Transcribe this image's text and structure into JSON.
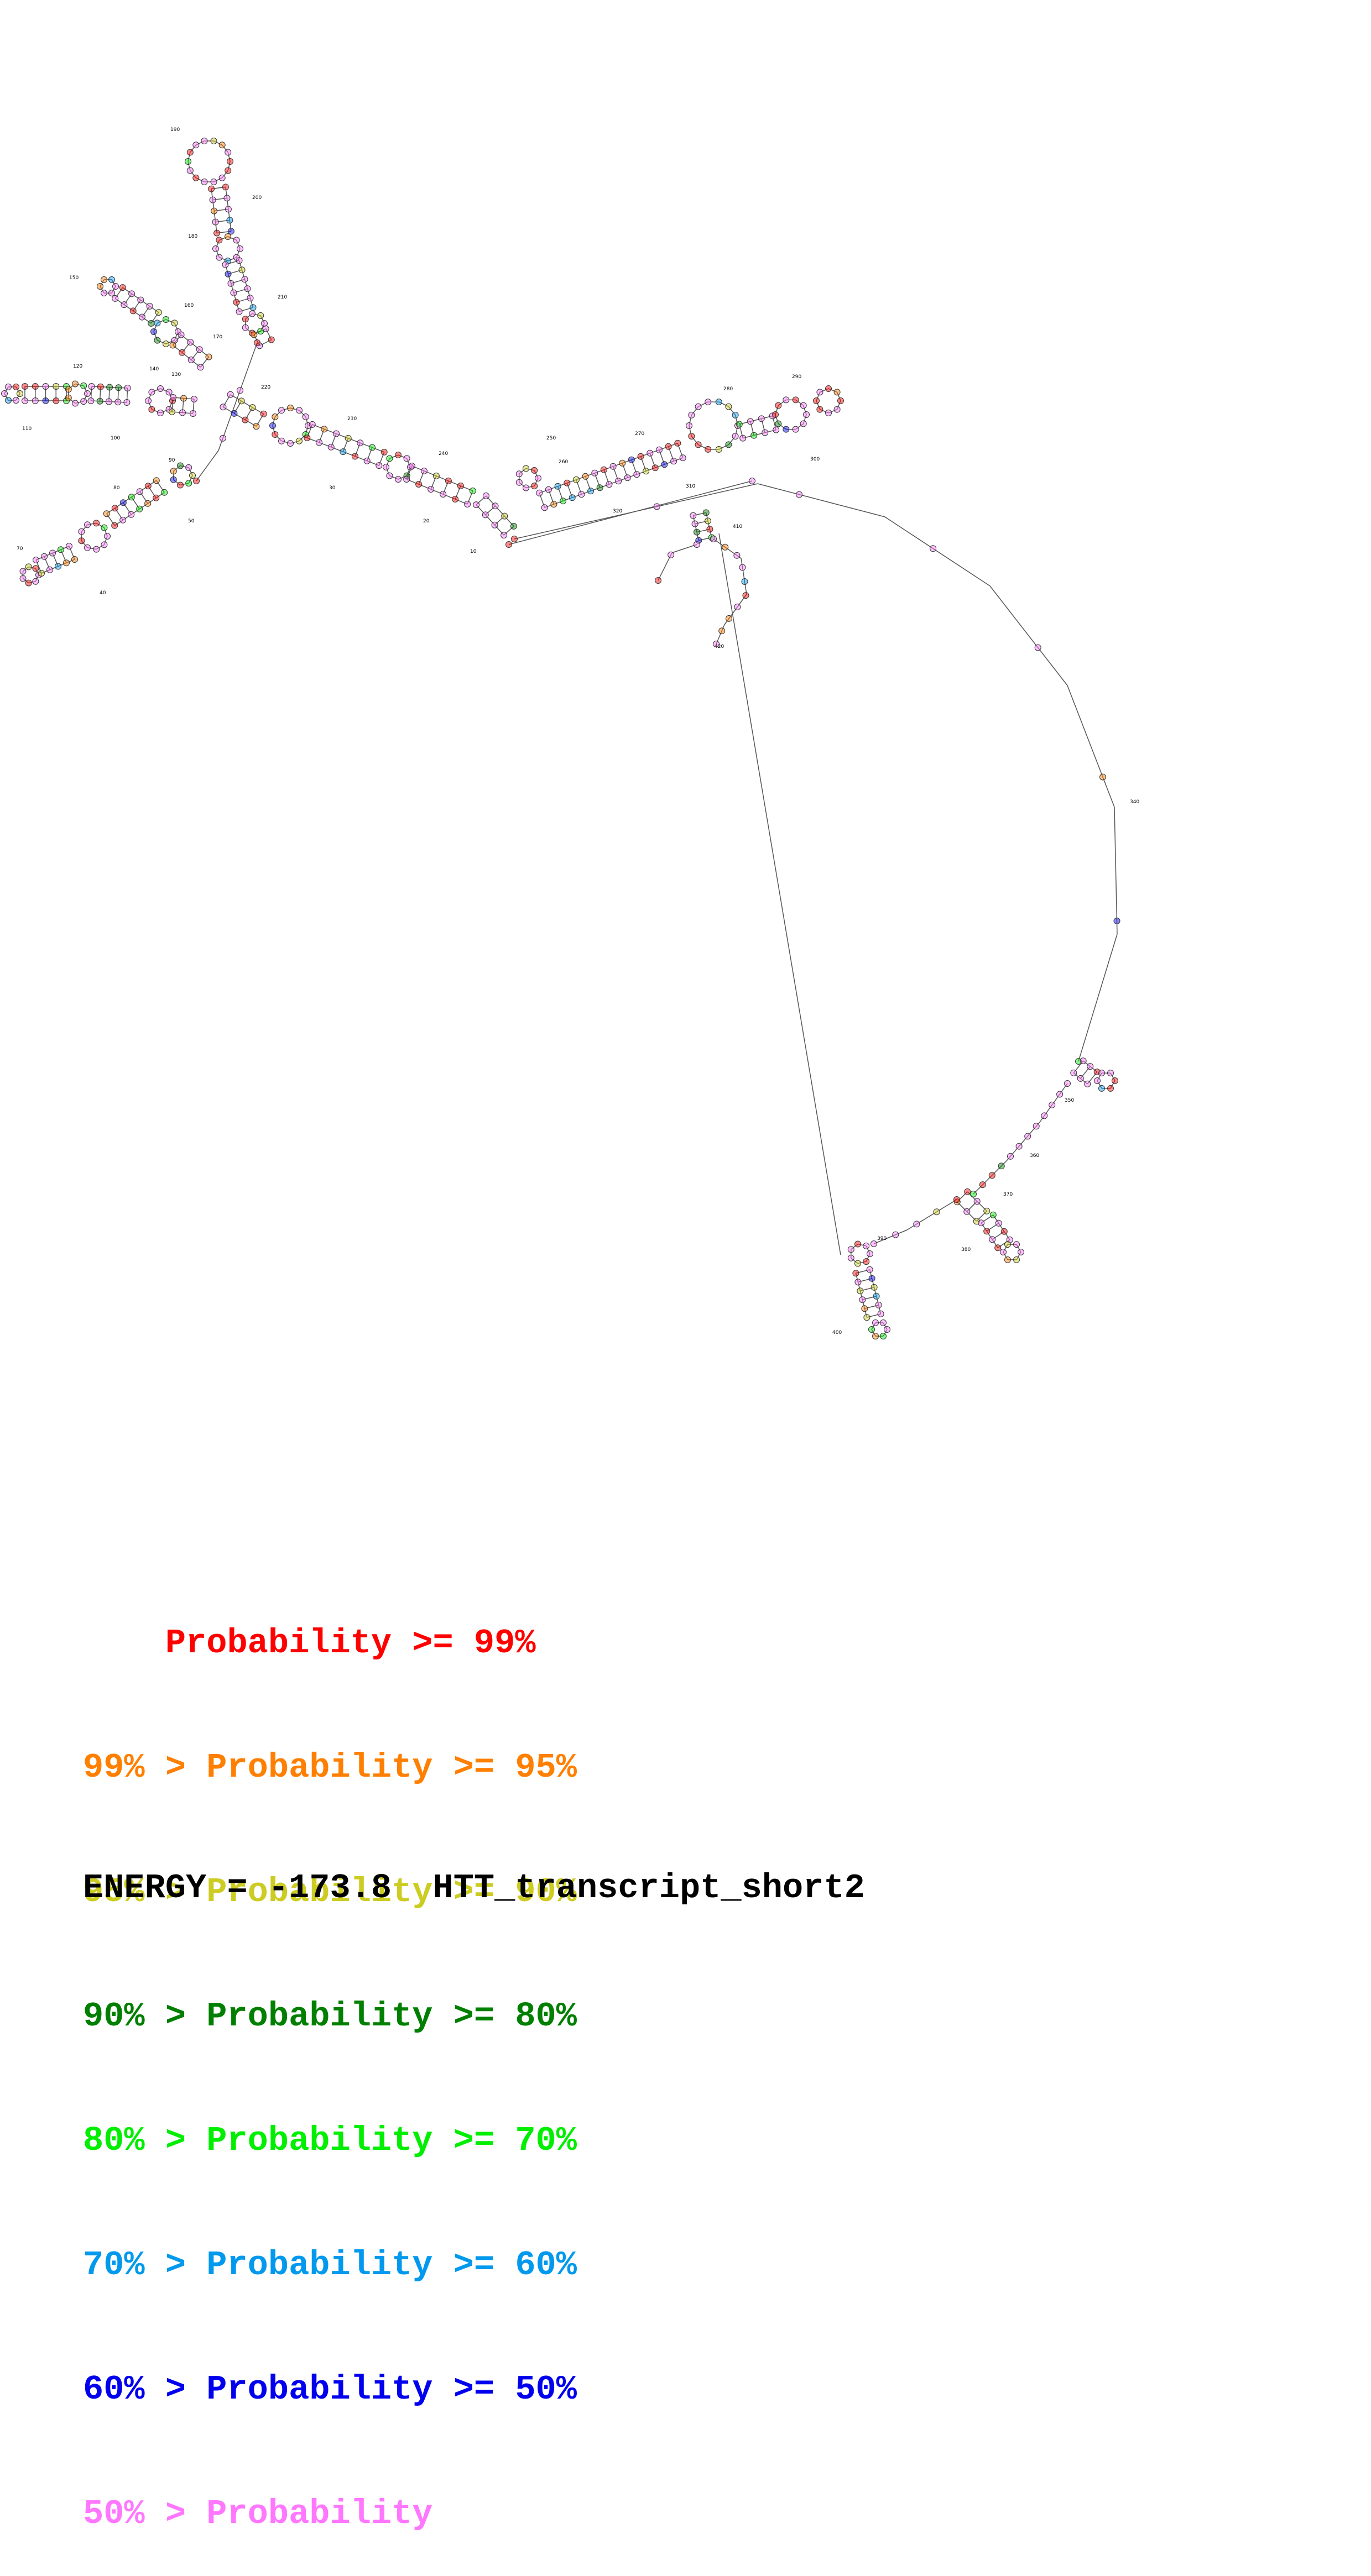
{
  "diagram": {
    "position_labels": [
      "10",
      "20",
      "30",
      "40",
      "50",
      "70",
      "80",
      "90",
      "100",
      "110",
      "120",
      "130",
      "140",
      "150",
      "160",
      "170",
      "180",
      "190",
      "200",
      "210",
      "220",
      "230",
      "240",
      "250",
      "260",
      "270",
      "280",
      "290",
      "300",
      "310",
      "320",
      "340",
      "350",
      "360",
      "370",
      "380",
      "390",
      "400",
      "410",
      "420"
    ]
  },
  "legend": {
    "rows": [
      {
        "prefix": "    ",
        "text": "Probability >= 99%",
        "color": "#ff0000"
      },
      {
        "prefix": "99% > ",
        "text": "Probability >= 95%",
        "color": "#ff7f00"
      },
      {
        "prefix": "95% > ",
        "text": "Probability >= 90%",
        "color": "#cccc22"
      },
      {
        "prefix": "90% > ",
        "text": "Probability >= 80%",
        "color": "#007f00"
      },
      {
        "prefix": "80% > ",
        "text": "Probability >= 70%",
        "color": "#00ee00"
      },
      {
        "prefix": "70% > ",
        "text": "Probability >= 60%",
        "color": "#0099ee"
      },
      {
        "prefix": "60% > ",
        "text": "Probability >= 50%",
        "color": "#0000ee"
      },
      {
        "prefix": "50% > ",
        "text": "Probability",
        "color": "#ff77ff"
      }
    ]
  },
  "footer": {
    "energy_text": "ENERGY = -173.8  HTT_transcript_short2"
  }
}
